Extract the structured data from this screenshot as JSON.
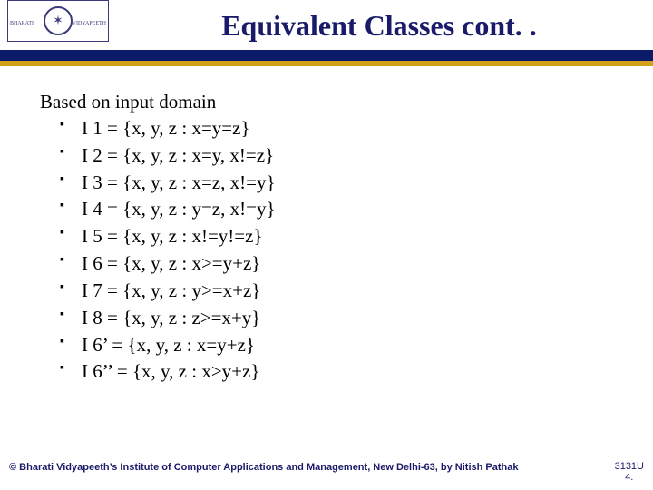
{
  "header": {
    "title": "Equivalent Classes cont. .",
    "logo_left": "BHARATI",
    "logo_right": "VIDYAPEETH",
    "logo_glyph": "✶"
  },
  "content": {
    "intro": "Based on input domain",
    "items": [
      "I 1 =  {x, y, z : x=y=z}",
      "I 2 =  {x, y, z : x=y, x!=z}",
      "I 3 =  {x, y, z : x=z, x!=y}",
      "I 4 =  {x, y, z : y=z, x!=y}",
      "I 5 =  {x, y, z : x!=y!=z}",
      "I 6 =  {x, y, z : x>=y+z}",
      "I 7 =  {x, y, z : y>=x+z}",
      "I 8 =  {x, y, z : z>=x+y}",
      "I 6’ = {x, y, z : x=y+z}",
      "I 6’’ = {x, y, z : x>y+z}"
    ]
  },
  "footer": {
    "copyright": "© Bharati Vidyapeeth’s Institute of Computer Applications and Management, New Delhi-63, by  Nitish Pathak",
    "page_a": "3131U",
    "page_b": "4."
  },
  "colors": {
    "title": "#1a1a6a",
    "bar_dark": "#0b1b6a",
    "bar_gold": "#d4a017",
    "text": "#000000"
  }
}
